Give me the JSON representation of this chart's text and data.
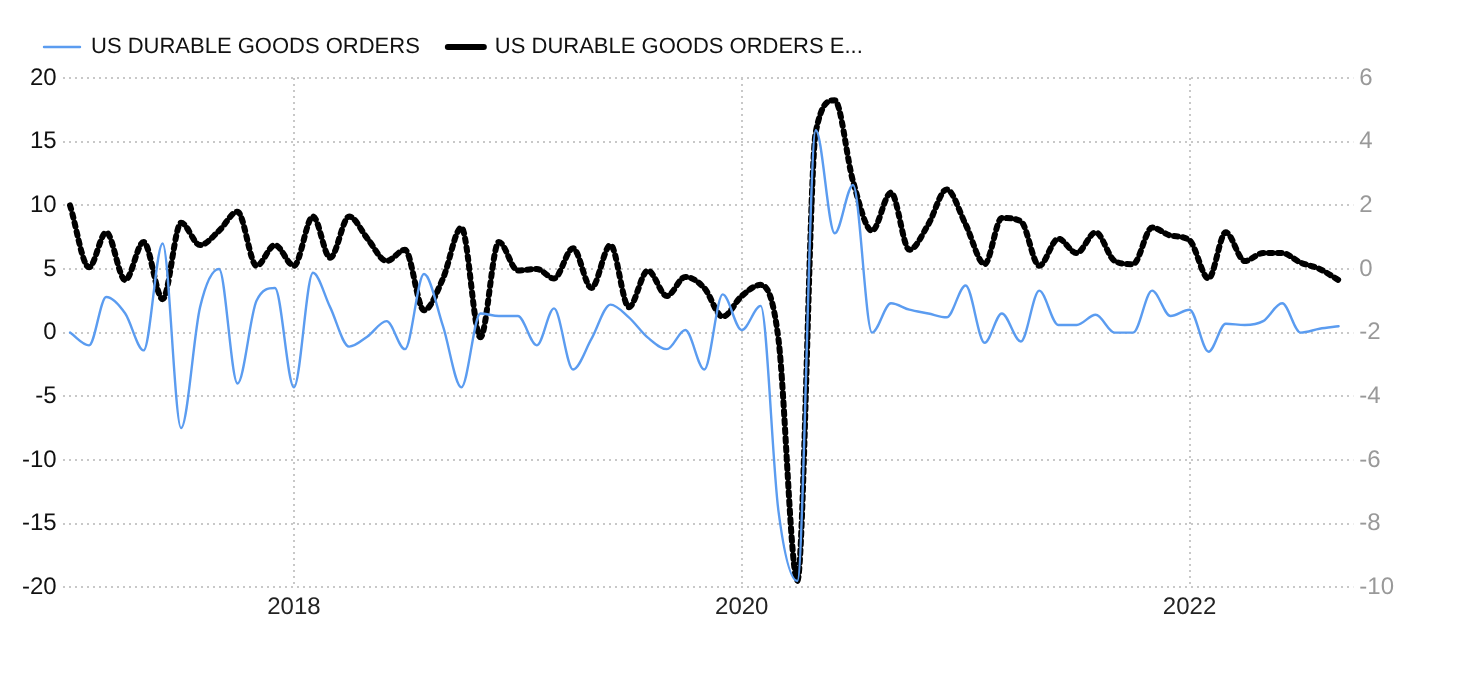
{
  "chart_data": {
    "type": "line",
    "x": [
      "2017-01",
      "2017-02",
      "2017-03",
      "2017-04",
      "2017-05",
      "2017-06",
      "2017-07",
      "2017-08",
      "2017-09",
      "2017-10",
      "2017-11",
      "2017-12",
      "2018-01",
      "2018-02",
      "2018-03",
      "2018-04",
      "2018-05",
      "2018-06",
      "2018-07",
      "2018-08",
      "2018-09",
      "2018-10",
      "2018-11",
      "2018-12",
      "2019-01",
      "2019-02",
      "2019-03",
      "2019-04",
      "2019-05",
      "2019-06",
      "2019-07",
      "2019-08",
      "2019-09",
      "2019-10",
      "2019-11",
      "2019-12",
      "2020-01",
      "2020-02",
      "2020-03",
      "2020-04",
      "2020-05",
      "2020-06",
      "2020-07",
      "2020-08",
      "2020-09",
      "2020-10",
      "2020-11",
      "2020-12",
      "2021-01",
      "2021-02",
      "2021-03",
      "2021-04",
      "2021-05",
      "2021-06",
      "2021-07",
      "2021-08",
      "2021-09",
      "2021-10",
      "2021-11",
      "2021-12",
      "2022-01",
      "2022-02",
      "2022-03",
      "2022-04",
      "2022-05",
      "2022-06",
      "2022-07",
      "2022-08",
      "2022-09"
    ],
    "series": [
      {
        "name": "US DURABLE GOODS ORDERS",
        "color": "#5b9cf0",
        "line_style": "solid",
        "values": [
          0,
          -1,
          2.8,
          1.5,
          -1.4,
          7,
          -7.5,
          2,
          5,
          -4,
          2.5,
          3.5,
          -4.3,
          4.7,
          2,
          -1.1,
          -0.3,
          0.9,
          -1.3,
          4.6,
          0.5,
          -4.3,
          1.5,
          1.3,
          1.3,
          -1,
          1.9,
          -2.9,
          -0.5,
          2.2,
          1.2,
          -0.4,
          -1.3,
          0.2,
          -2.9,
          3,
          0.2,
          2.1,
          -14,
          -19.5,
          15.9,
          7.8,
          11.6,
          0,
          2.3,
          1.8,
          1.5,
          1.2,
          3.7,
          -0.8,
          1.5,
          -0.7,
          3.3,
          0.6,
          0.6,
          1.4,
          0,
          0,
          3.3,
          1.3,
          1.8,
          -1.5,
          0.7,
          0.6,
          0.9,
          2.3,
          0,
          0.3,
          0.5
        ]
      },
      {
        "name": "US DURABLE GOODS ORDERS E...",
        "color": "#000000",
        "line_style": "dotted",
        "axis": "y2",
        "values": [
          2,
          0.05,
          1.15,
          -0.35,
          0.85,
          -0.95,
          1.45,
          0.75,
          1.2,
          1.8,
          0.1,
          0.75,
          0.1,
          1.65,
          0.35,
          1.65,
          0.95,
          0.25,
          0.6,
          -1.3,
          -0.3,
          1.3,
          -2.15,
          0.85,
          -0.05,
          0,
          -0.3,
          0.65,
          -0.6,
          0.75,
          -1.2,
          -0.05,
          -0.85,
          -0.25,
          -0.6,
          -1.5,
          -0.85,
          -0.5,
          -2.2,
          -9.8,
          4.3,
          5.3,
          2.75,
          1.2,
          2.4,
          0.6,
          1.4,
          2.5,
          1.4,
          0.15,
          1.6,
          1.5,
          0.1,
          0.95,
          0.5,
          1.15,
          0.25,
          0.15,
          1.3,
          1.05,
          0.9,
          -0.3,
          1.15,
          0.25,
          0.5,
          0.5,
          0.2,
          0,
          -0.35
        ]
      }
    ],
    "xlim": [
      "2016-12-20",
      "2022-09-25"
    ],
    "xticks": [
      {
        "value": "2018",
        "label": "2018"
      },
      {
        "value": "2020",
        "label": "2020"
      },
      {
        "value": "2022",
        "label": "2022"
      }
    ],
    "ylim": [
      -20,
      20
    ],
    "yticks": [
      -20,
      -15,
      -10,
      -5,
      0,
      5,
      10,
      15,
      20
    ],
    "y2lim": [
      -10,
      6
    ],
    "y2ticks": [
      -10,
      -8,
      -6,
      -4,
      -2,
      0,
      2,
      4,
      6
    ],
    "grid": true,
    "legend": "top left",
    "marker": "none"
  }
}
